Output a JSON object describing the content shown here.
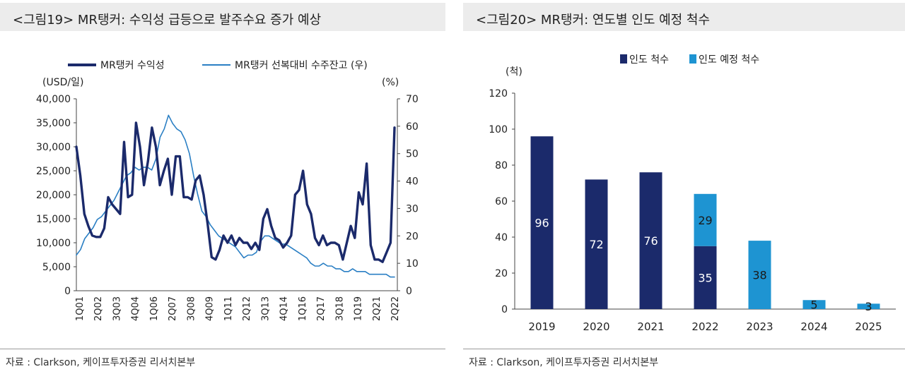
{
  "left": {
    "title": "<그림19> MR탱커: 수익성 급등으로 발주수요 증가 예상",
    "source": "자료 : Clarkson, 케이프투자증권 리서치본부",
    "colors": {
      "earnings": "#1b2a6b",
      "orderbook": "#2a7fc4"
    },
    "chart_data": {
      "type": "line",
      "left_axis_unit": "(USD/일)",
      "right_axis_unit": "(%)",
      "left_ylim": [
        0,
        40000
      ],
      "right_ylim": [
        0,
        70
      ],
      "left_ticks": [
        "0",
        "5,000",
        "10,000",
        "15,000",
        "20,000",
        "25,000",
        "30,000",
        "35,000",
        "40,000"
      ],
      "right_ticks": [
        "0",
        "10",
        "20",
        "30",
        "40",
        "50",
        "60",
        "70"
      ],
      "x_tick_labels": [
        "1Q01",
        "2Q02",
        "3Q03",
        "4Q04",
        "1Q06",
        "2Q07",
        "3Q08",
        "4Q09",
        "1Q11",
        "2Q12",
        "3Q13",
        "4Q14",
        "1Q16",
        "2Q17",
        "3Q18",
        "1Q19",
        "2Q21",
        "2Q22"
      ],
      "series": [
        {
          "name": "MR탱커 수익성",
          "axis": "left",
          "values": [
            30000,
            24000,
            16000,
            13500,
            11500,
            11200,
            11200,
            13000,
            19500,
            18000,
            17000,
            16000,
            31000,
            19500,
            20000,
            35000,
            30000,
            22000,
            27000,
            34000,
            30000,
            22000,
            25000,
            27500,
            20000,
            28000,
            28000,
            19500,
            19500,
            19000,
            23000,
            24000,
            20000,
            14000,
            7000,
            6500,
            8500,
            11500,
            10000,
            11500,
            9500,
            11000,
            10000,
            10000,
            8700,
            10000,
            8500,
            15000,
            17000,
            13500,
            11000,
            10500,
            9000,
            10000,
            11500,
            20000,
            21000,
            25000,
            18000,
            16000,
            11000,
            9500,
            11500,
            9500,
            10000,
            10000,
            9500,
            6500,
            10000,
            13500,
            11000,
            20500,
            18000,
            26500,
            9500,
            6500,
            6500,
            6000,
            8000,
            10000,
            34000
          ]
        },
        {
          "name": "MR탱커 선복대비 수주잔고 (우)",
          "axis": "right",
          "values": [
            13,
            15,
            19,
            21,
            23,
            26,
            27,
            29,
            31,
            33,
            36,
            39,
            42,
            43,
            45,
            44,
            45,
            45,
            44,
            48,
            56,
            59,
            64,
            61,
            59,
            58,
            55,
            50,
            42,
            35,
            29,
            27,
            24,
            22,
            20,
            19,
            18,
            17,
            16,
            14,
            12,
            13,
            13,
            14,
            18,
            20,
            20,
            19,
            18,
            17,
            17,
            16,
            15,
            14,
            13,
            12,
            10,
            9,
            9,
            10,
            9,
            9,
            8,
            8,
            7,
            7,
            8,
            7,
            7,
            7,
            6,
            6,
            6,
            6,
            6,
            5,
            5
          ]
        }
      ]
    }
  },
  "right": {
    "title": "<그림20> MR탱커: 연도별 인도 예정 척수",
    "source": "자료 : Clarkson, 케이프투자증권 리서치본부",
    "colors": {
      "delivered": "#1b2a6b",
      "scheduled": "#1e94d2"
    },
    "chart_data": {
      "type": "bar",
      "stacked": true,
      "y_unit": "(척)",
      "ylim": [
        0,
        120
      ],
      "y_ticks": [
        "0",
        "20",
        "40",
        "60",
        "80",
        "100",
        "120"
      ],
      "categories": [
        "2019",
        "2020",
        "2021",
        "2022",
        "2023",
        "2024",
        "2025"
      ],
      "series": [
        {
          "name": "인도 척수",
          "values": [
            96,
            72,
            76,
            35,
            0,
            0,
            0
          ]
        },
        {
          "name": "인도 예정 척수",
          "values": [
            0,
            0,
            0,
            29,
            38,
            5,
            3
          ]
        }
      ],
      "legend": "top"
    }
  }
}
